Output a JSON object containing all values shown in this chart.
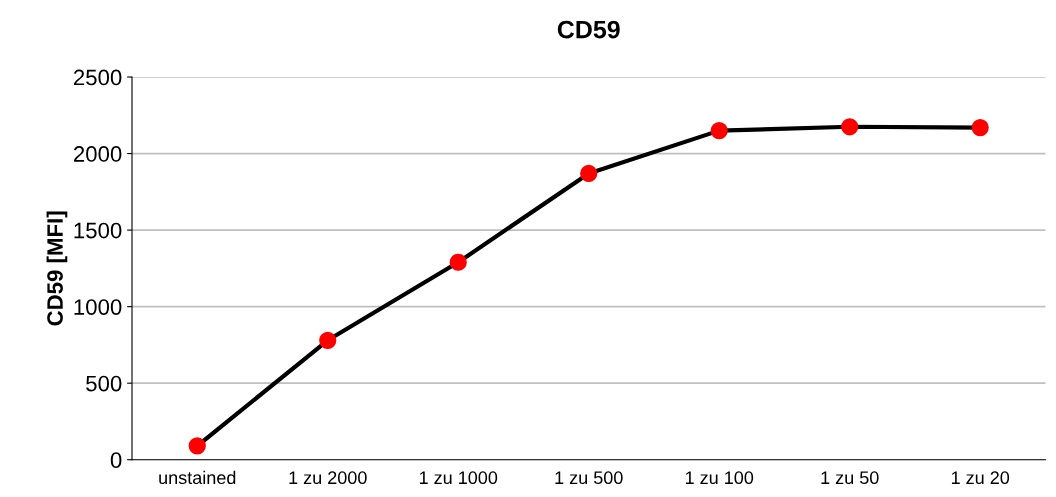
{
  "chart_data": {
    "type": "line",
    "title": "CD59",
    "ylabel": "CD59 [MFI]",
    "categories": [
      "unstained",
      "1 zu 2000",
      "1 zu 1000",
      "1 zu 500",
      "1 zu 100",
      "1 zu 50",
      "1 zu 20"
    ],
    "series": [
      {
        "color": "#000000",
        "colors": [
          "#ff0000",
          "#ff0000",
          "#ff0000",
          "#ff0000",
          "#ff0000",
          "#ff0000",
          "#ff0000"
        ],
        "values": [
          90,
          780,
          1290,
          1870,
          2150,
          2175,
          2170
        ]
      }
    ],
    "ylim": [
      0,
      2500
    ],
    "yticks": [
      0,
      500,
      1000,
      1500,
      2000,
      2500
    ],
    "grid": "y",
    "marker": "circle",
    "line_style": "solid"
  }
}
